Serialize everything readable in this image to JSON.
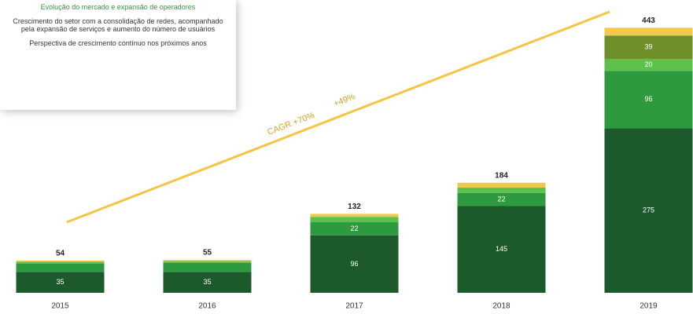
{
  "chart_data": {
    "type": "stacked_bar",
    "categories": [
      "2015",
      "2016",
      "2017",
      "2018",
      "2019"
    ],
    "series": [
      {
        "color": "#1d5a2b",
        "values": [
          35,
          35,
          96,
          145,
          275
        ]
      },
      {
        "color": "#2e9a3f",
        "values": [
          14,
          15,
          22,
          22,
          96
        ]
      },
      {
        "color": "#5dc24b",
        "values": [
          3,
          3,
          9,
          9,
          20
        ]
      },
      {
        "color": "#6f8f2a",
        "values": [
          0,
          0,
          0,
          0,
          39
        ]
      },
      {
        "color": "#f2c94c",
        "values": [
          2,
          2,
          5,
          8,
          13
        ]
      }
    ],
    "totals": [
      54,
      55,
      132,
      184,
      443
    ],
    "ylim": [
      0,
      450
    ],
    "annotations": [
      "CAGR +70%",
      "+49%"
    ],
    "notes": [
      "Evolução do mercado e expansão de operadores",
      "Crescimento do setor com a consolidação de redes, acompanhado pela expansão de serviços e aumento do número de usuários",
      "Perspectiva de crescimento contínuo nos próximos anos"
    ]
  }
}
